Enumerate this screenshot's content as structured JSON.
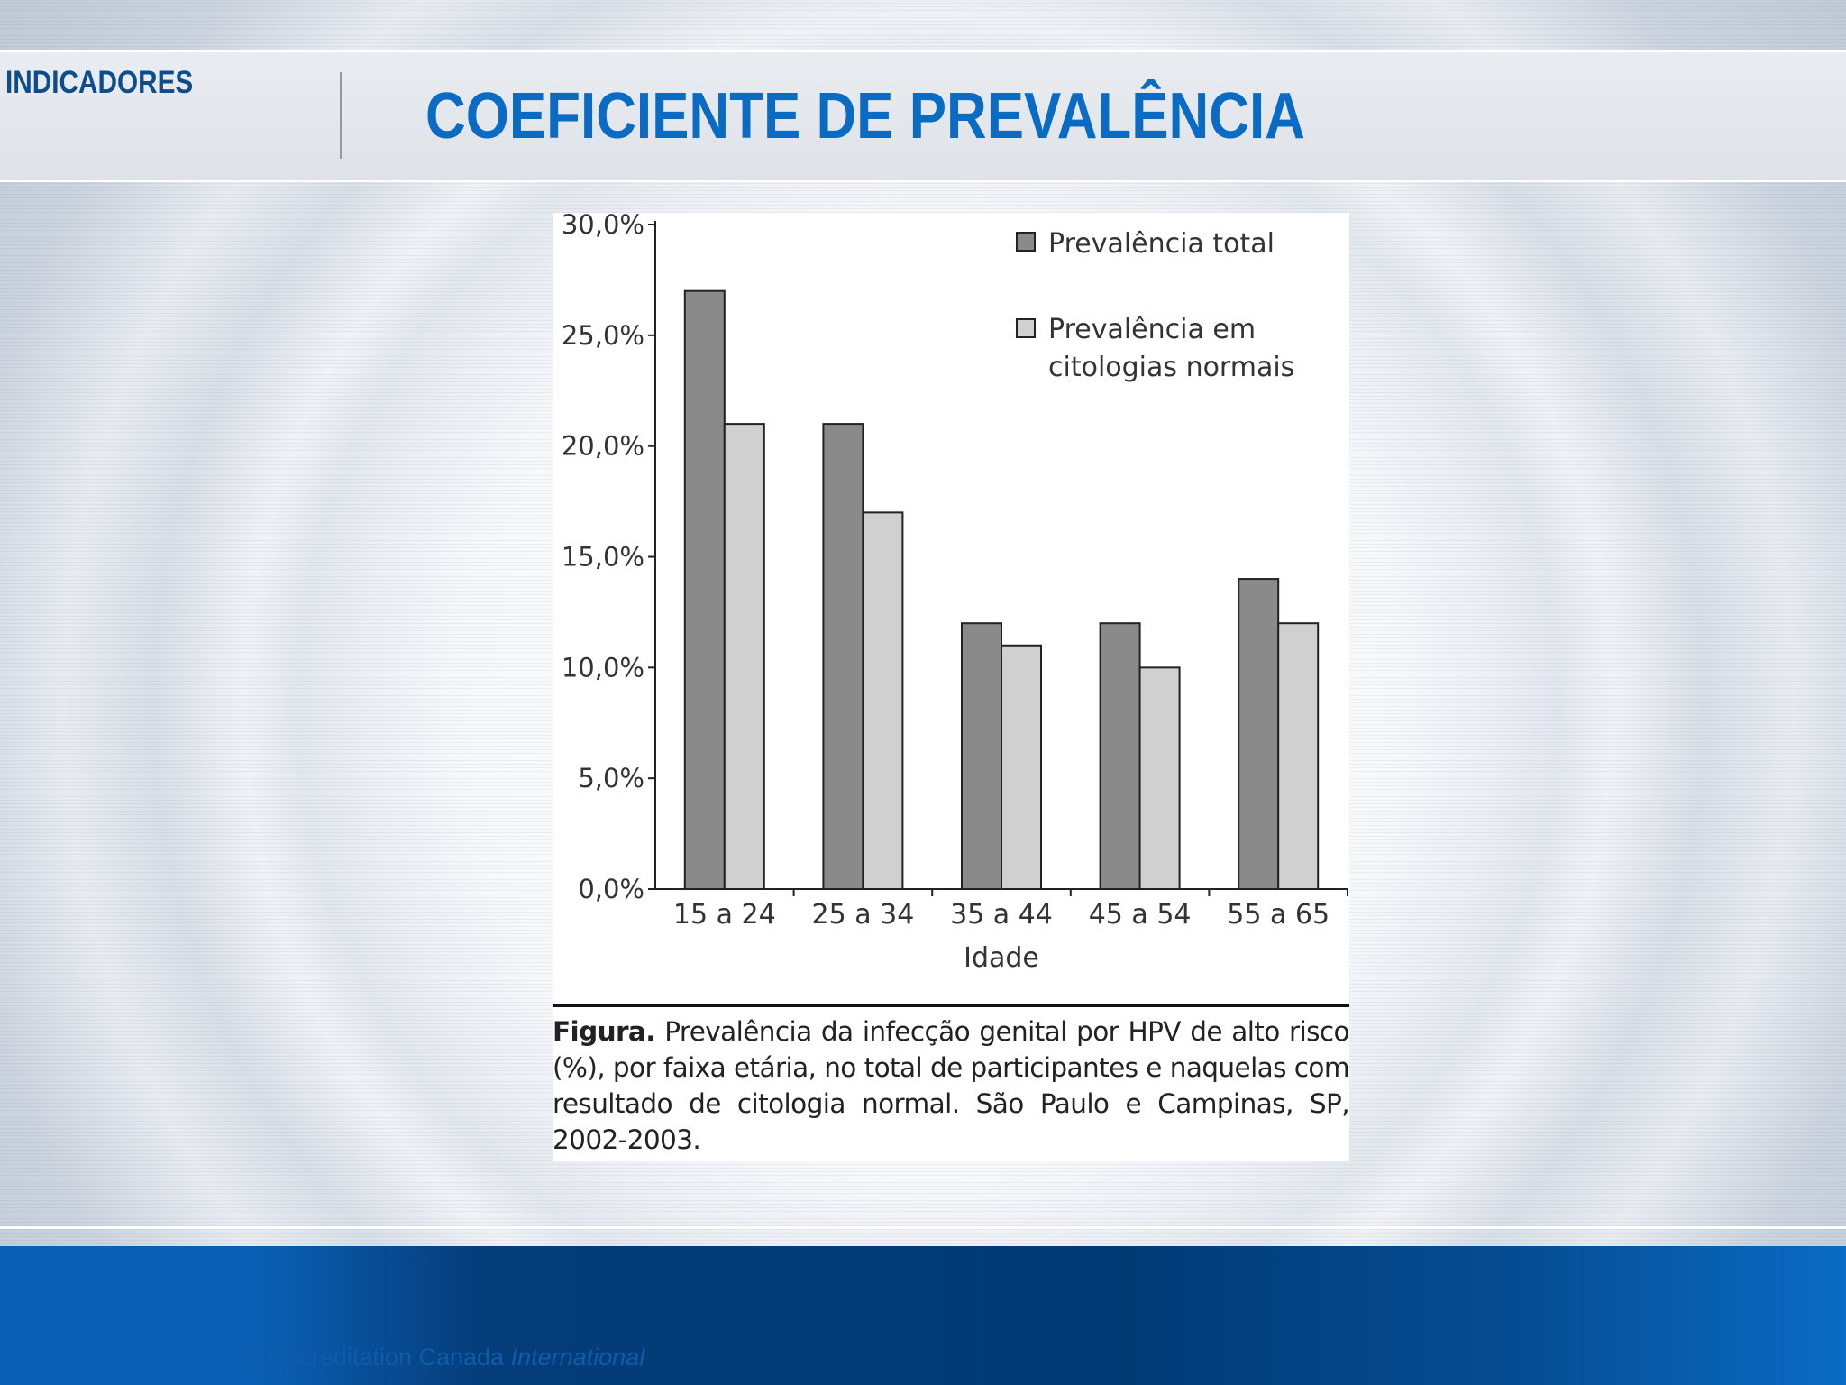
{
  "slide": {
    "section_label": "INDICADORES",
    "title": "COEFICIENTE DE PREVALÊNCIA",
    "copyright_prefix": "© Accreditation Canada",
    "copyright_suffix": "International"
  },
  "figure": {
    "caption_label": "Figura.",
    "caption_text": "Prevalência da infecção genital por HPV de alto risco (%), por faixa etária, no total de participantes e naquelas com resultado de citologia normal. São Paulo e Campinas, SP, 2002-2003."
  },
  "colors": {
    "series_total": "#8a8a8a",
    "series_normal": "#d0d0d0",
    "title_blue": "#0a6bc4",
    "label_blue": "#0d4d8c"
  },
  "chart_data": {
    "type": "bar",
    "categories": [
      "15 a 24",
      "25 a 34",
      "35 a 44",
      "45 a 54",
      "55 a 65"
    ],
    "series": [
      {
        "name": "Prevalência total",
        "values": [
          27.0,
          21.0,
          12.0,
          12.0,
          14.0
        ]
      },
      {
        "name": "Prevalência em citologias normais",
        "values": [
          21.0,
          17.0,
          11.0,
          10.0,
          12.0
        ]
      }
    ],
    "legend_lines": {
      "total": [
        "Prevalência total"
      ],
      "normal": [
        "Prevalência em",
        "citologias normais"
      ]
    },
    "xlabel": "Idade",
    "ylabel": "",
    "ylim": [
      0,
      30
    ],
    "yticks": [
      "0,0%",
      "5,0%",
      "10,0%",
      "15,0%",
      "20,0%",
      "25,0%",
      "30,0%"
    ],
    "legend_position": "top-right",
    "grid": false
  }
}
